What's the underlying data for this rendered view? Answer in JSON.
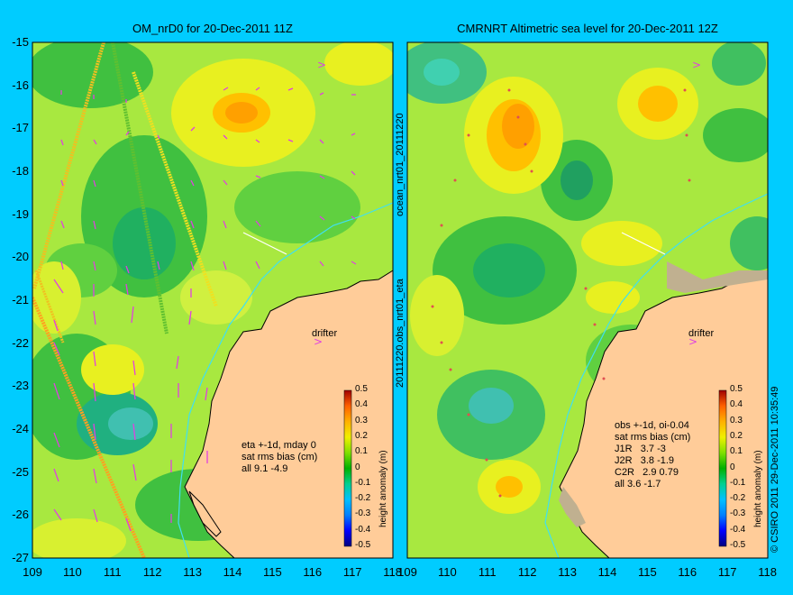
{
  "panels": [
    {
      "title": "OM_nrD0 for 20-Dec-2011 11Z",
      "stats": [
        "eta +-1d, mday 0",
        "sat rms bias (cm)",
        "all 9.1 -4.9"
      ],
      "drifter_label": "drifter"
    },
    {
      "title": "CMRNRT Altimetric sea level  for 20-Dec-2011 12Z",
      "stats": [
        "obs +-1d, oi-0.04",
        "sat rms bias (cm)",
        "J1R   3.7 -3",
        "J2R   3.8 -1.9",
        "C2R   2.9 0.79",
        "all 3.6 -1.7"
      ],
      "drifter_label": "drifter"
    }
  ],
  "x_ticks": [
    "109",
    "110",
    "111",
    "112",
    "113",
    "114",
    "115",
    "116",
    "117",
    "118"
  ],
  "y_ticks": [
    "-15",
    "-16",
    "-17",
    "-18",
    "-19",
    "-20",
    "-21",
    "-22",
    "-23",
    "-24",
    "-25",
    "-26",
    "-27"
  ],
  "colorbar": {
    "ticks": [
      "0.5",
      "0.4",
      "0.3",
      "0.2",
      "0.1",
      "0",
      "-0.1",
      "-0.2",
      "-0.3",
      "-0.4",
      "-0.5"
    ],
    "label": "height anomaly (m)",
    "colors": [
      "#000080",
      "#0000ff",
      "#0080ff",
      "#00c0ff",
      "#00e0a0",
      "#00c000",
      "#80e000",
      "#f0f000",
      "#ffc000",
      "#ff8000",
      "#e03000",
      "#a00000"
    ]
  },
  "vertical_text_middle": "20111220.obs_nrt01_eta",
  "vertical_text_middle_top": "ocean_nrt01_20111220",
  "credit": "© CSIRO 2011   29-Dec-2011 10:35:49",
  "colors": {
    "background": "#00ccff",
    "land": "#ffcc99",
    "sea_base": "#90e040"
  }
}
